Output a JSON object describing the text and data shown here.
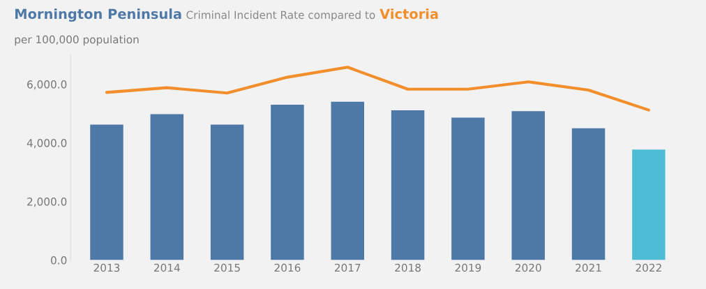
{
  "chart_data": {
    "type": "bar",
    "title": "Criminal Incident Rate compared to",
    "subtitle": "per 100,000 population",
    "categories": [
      "2013",
      "2014",
      "2015",
      "2016",
      "2017",
      "2018",
      "2019",
      "2020",
      "2021",
      "2022"
    ],
    "series": [
      {
        "name": "Mornington Peninsula",
        "color": "#4e79a7",
        "colors": [
          "#4e79a7",
          "#4e79a7",
          "#4e79a7",
          "#4e79a7",
          "#4e79a7",
          "#4e79a7",
          "#4e79a7",
          "#4e79a7",
          "#4e79a7",
          "#4fbcd6"
        ],
        "values": [
          4620,
          4980,
          4620,
          5300,
          5400,
          5110,
          4860,
          5080,
          4500,
          3770
        ]
      },
      {
        "name": "Victoria",
        "type": "line",
        "color": "#f28e2b",
        "values": [
          5720,
          5880,
          5700,
          6240,
          6580,
          5830,
          5830,
          6080,
          5800,
          5120
        ]
      }
    ],
    "ylim": [
      0,
      7000
    ],
    "yticks": [
      {
        "value": 0,
        "label": "0.0"
      },
      {
        "value": 2000,
        "label": "2,000.0"
      },
      {
        "value": 4000,
        "label": "4,000.0"
      },
      {
        "value": 6000,
        "label": "6,000.0"
      }
    ],
    "grid": false,
    "legend": false
  }
}
